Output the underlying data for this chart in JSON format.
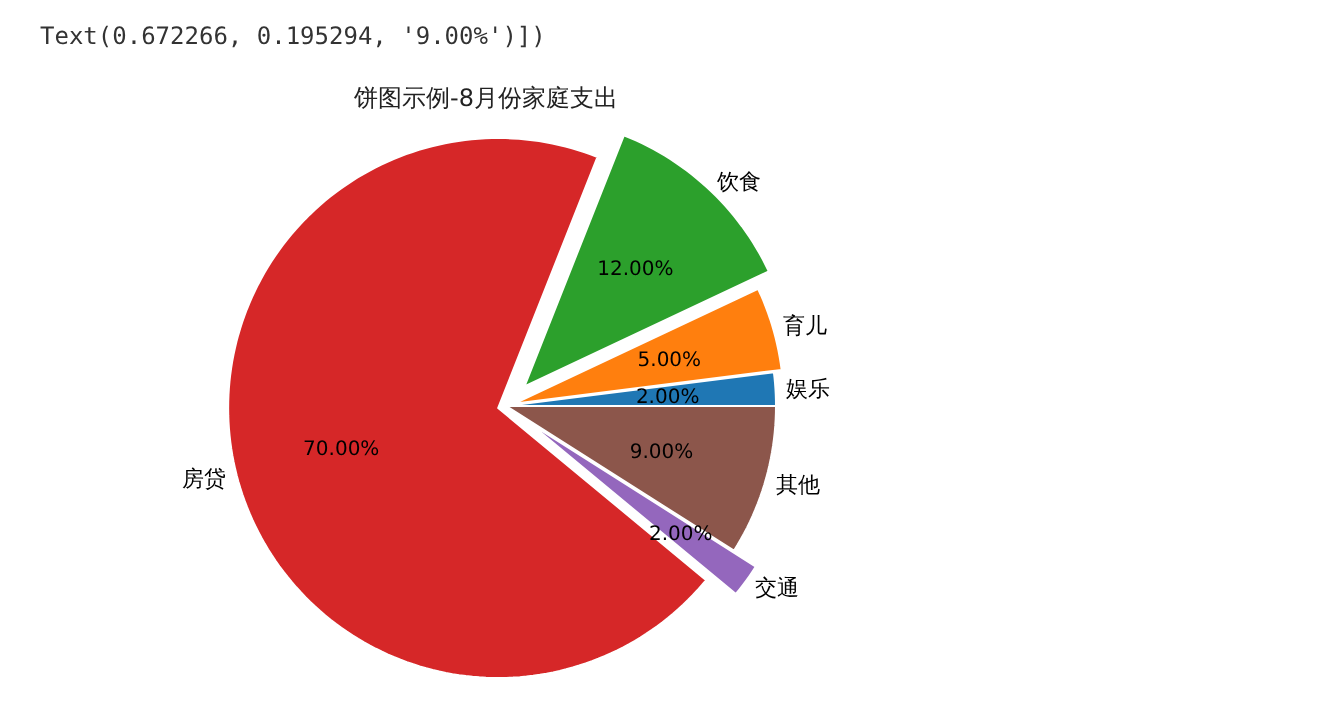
{
  "chart_data": {
    "type": "pie",
    "title": "饼图示例-8月份家庭支出",
    "categories": [
      "娱乐",
      "育儿",
      "饮食",
      "房贷",
      "交通",
      "其他"
    ],
    "values": [
      2,
      5,
      12,
      70,
      2,
      9
    ],
    "value_labels": [
      "2.00%",
      "5.00%",
      "12.00%",
      "70.00%",
      "2.00%",
      "9.00%"
    ],
    "colors": [
      "#1f77b4",
      "#ff7f0e",
      "#2ca02c",
      "#d62728",
      "#9467bd",
      "#8c564b"
    ],
    "annotations": [
      "Text(0.672266, 0.195294, '9.00%')])"
    ]
  }
}
